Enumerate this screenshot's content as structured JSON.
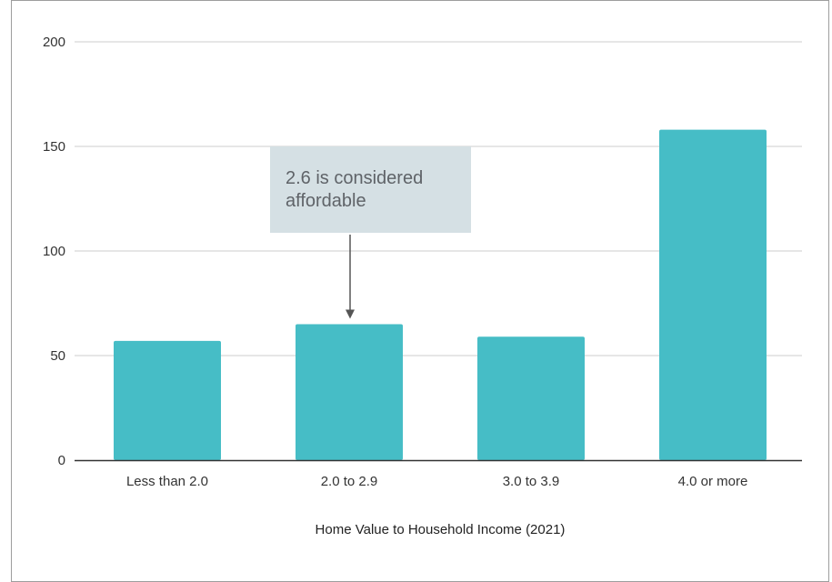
{
  "chart_data": {
    "type": "bar",
    "categories": [
      "Less than 2.0",
      "2.0 to 2.9",
      "3.0 to 3.9",
      "4.0 or more"
    ],
    "values": [
      57,
      65,
      59,
      158
    ],
    "title": "",
    "xlabel": "Home Value to Household Income (2021)",
    "ylabel": "",
    "ylim": [
      0,
      200
    ],
    "yticks": [
      0,
      50,
      100,
      150,
      200
    ],
    "ytick_labels": [
      "0",
      "50",
      "100",
      "150",
      "200"
    ],
    "grid": true,
    "legend": "none",
    "bar_color": "#46bdc6",
    "annotation": {
      "lines": [
        "2.6 is considered",
        "affordable"
      ],
      "target_category": "2.0 to 2.9",
      "box_color": "#d5e0e4",
      "text_color": "#5f6368"
    }
  }
}
